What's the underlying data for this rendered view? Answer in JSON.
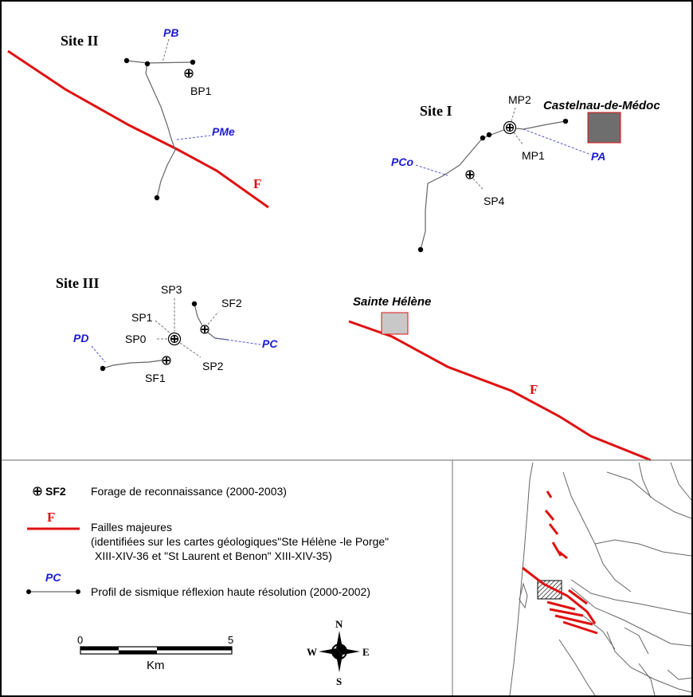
{
  "sites": {
    "site_ii": "Site II",
    "site_i": "Site I",
    "site_iii": "Site III"
  },
  "profiles": {
    "pb": "PB",
    "pme": "PMe",
    "pco": "PCo",
    "pa": "PA",
    "pd": "PD",
    "pc": "PC"
  },
  "boreholes": {
    "bp1": "BP1",
    "mp2": "MP2",
    "mp1": "MP1",
    "sp4": "SP4",
    "sp3": "SP3",
    "sp1": "SP1",
    "sp0": "SP0",
    "sp2": "SP2",
    "sf2": "SF2",
    "sf1": "SF1"
  },
  "towns": {
    "castelnau": "Castelnau-de-Médoc",
    "sainte_helene": "Sainte Hélène"
  },
  "faults": {
    "label": "F"
  },
  "legend": {
    "borehole_code": "SF2",
    "borehole_text": "Forage de reconnaissance (2000-2003)",
    "fault_code": "F",
    "fault_line1": "Failles majeures",
    "fault_line2": "(identifiées sur les cartes géologiques\"Ste Hélène -le Porge\"",
    "fault_line3": "XIII-XIV-36 et \"St Laurent et Benon\" XIII-XIV-35)",
    "profile_code": "PC",
    "profile_text": "Profil de sismique réflexion haute résolution (2000-2002)"
  },
  "scale_bar": {
    "start": "0",
    "end": "5",
    "unit": "Km"
  },
  "compass": {
    "north": "N",
    "south": "S",
    "east": "E",
    "west": "W"
  },
  "colors": {
    "fault": "#e01010",
    "profile_label": "#1a1ad6",
    "town_castelnau_fill": "#6e6e6e",
    "town_sainte_helene_fill": "#c8c8c8",
    "town_border": "#e01010"
  }
}
